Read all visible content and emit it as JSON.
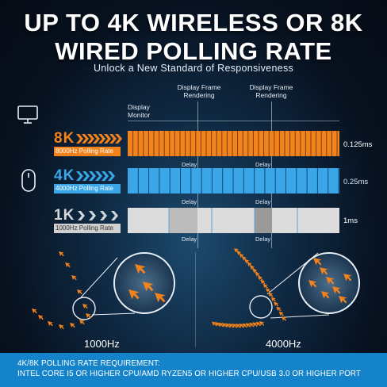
{
  "header": {
    "title_line1": "UP TO 4K WIRELESS OR 8K",
    "title_line2": "WIRED POLLING RATE",
    "subtitle": "Unlock a New Standard of Responsiveness"
  },
  "timing": {
    "display_monitor": [
      "Display",
      "Monitor"
    ],
    "frame_rendering_1": [
      "Display Frame",
      "Rendering"
    ],
    "frame_rendering_2": [
      "Display Frame",
      "Rendering"
    ],
    "delay_label": "Delay"
  },
  "rates": [
    {
      "mark": "8K",
      "label": "8000Hz Polling Rate",
      "time": "0.125ms",
      "color": "#f2821c"
    },
    {
      "mark": "4K",
      "label": "4000Hz Polling Rate",
      "time": "0.25ms",
      "color": "#3aa6e8"
    },
    {
      "mark": "1K",
      "label": "1000Hz Polling Rate",
      "time": "1ms",
      "color": "#d8d8d8"
    }
  ],
  "comparison": {
    "left_label": "1000Hz",
    "right_label": "4000Hz"
  },
  "footer": {
    "line1": "4K/8K POLLING RATE REQUIREMENT:",
    "line2": "INTEL CORE I5 OR HIGHER CPU/AMD RYZEN5 OR HIGHER CPU/USB 3.0 OR HIGHER PORT"
  },
  "icons": [
    "monitor-icon",
    "mouse-icon",
    "chevron-arrow-icon",
    "cursor-arrow-icon"
  ]
}
